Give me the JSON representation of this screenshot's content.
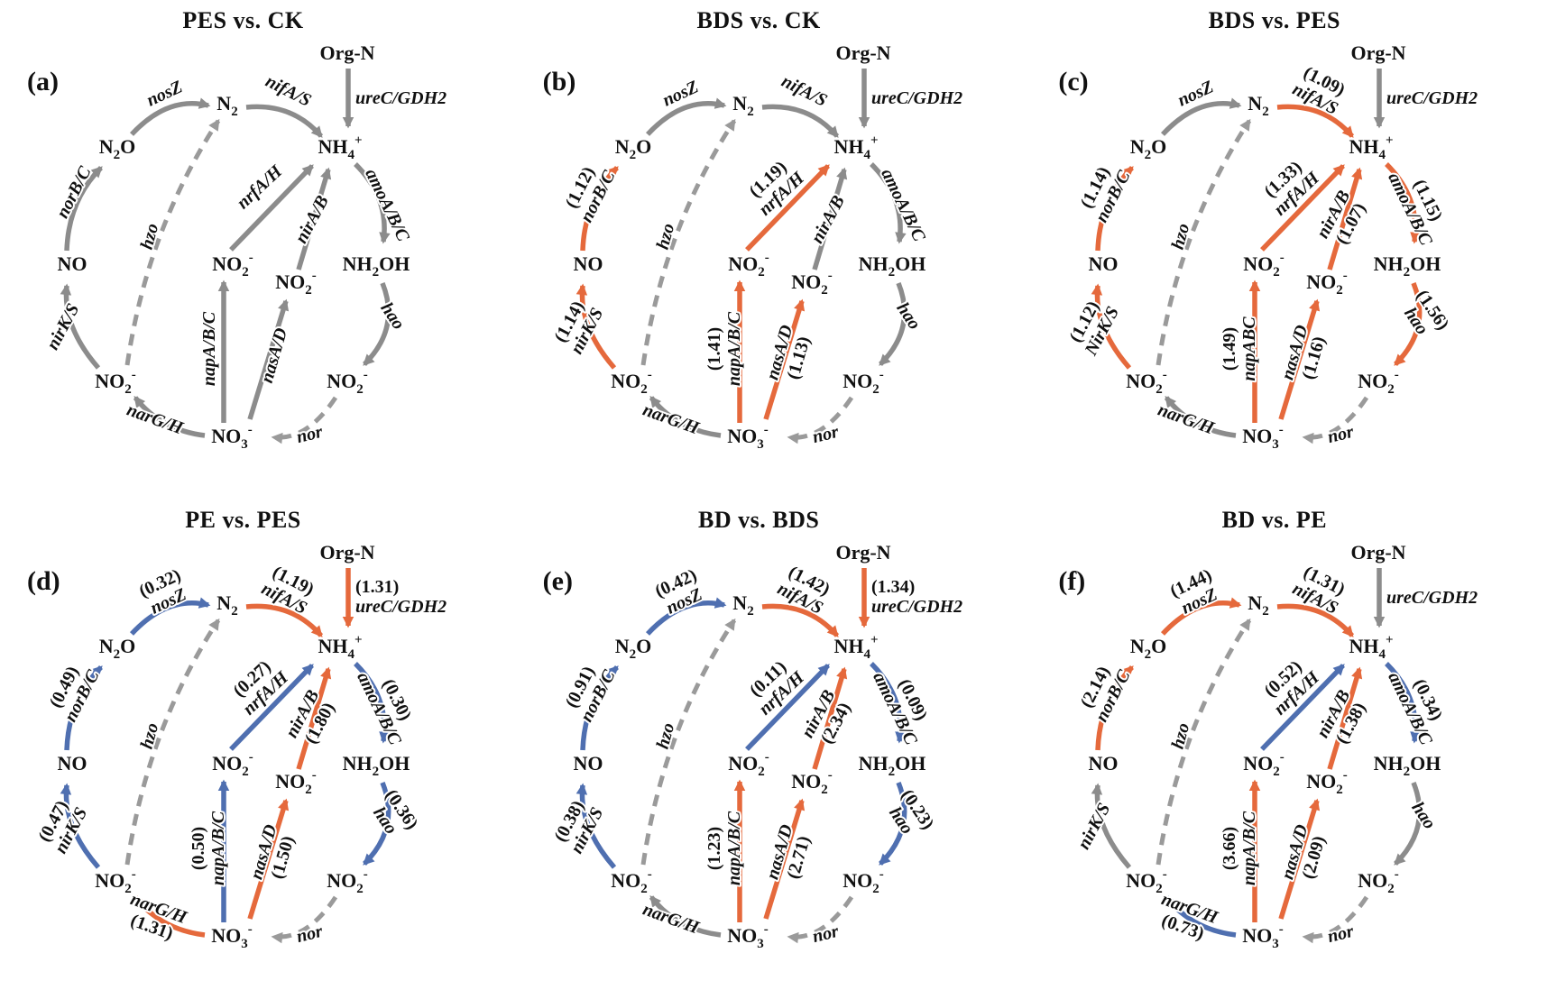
{
  "figure": {
    "description": "Nitrogen cycle gene-expression comparison diagrams",
    "colors": {
      "unchanged": "#8C8C8C",
      "increased": "#E5693C",
      "decreased": "#4F6FB0",
      "dashed": "#9A9A9A",
      "dashed_label": "#B8B8B8",
      "text": "#111111"
    },
    "node_labels": {
      "orgN": "Org-N",
      "n2": "N~2~",
      "nh4": "NH~4~^+^",
      "n2o": "N~2~O",
      "no": "NO",
      "nh2oh": "NH~2~OH",
      "no2C": "NO~2~^-^",
      "no2R": "NO~2~^-^",
      "no2L": "NO~2~^-^",
      "no2BR": "NO~2~^-^",
      "no3": "NO~3~^-^"
    },
    "panels": [
      {
        "letter": "(a)",
        "title": "PES vs. CK",
        "arrows": {
          "nosZ": {
            "label": "nosZ",
            "value": null,
            "state": "unchanged"
          },
          "nifAS": {
            "label": "nifA/S",
            "value": null,
            "state": "unchanged"
          },
          "ureC": {
            "label": "ureC/GDH2",
            "value": null,
            "state": "unchanged"
          },
          "norBC": {
            "label": "norB/C",
            "value": null,
            "state": "unchanged"
          },
          "nrfAH": {
            "label": "nrfA/H",
            "value": null,
            "state": "unchanged"
          },
          "nirAB": {
            "label": "nirA/B",
            "value": null,
            "state": "unchanged"
          },
          "amoABC": {
            "label": "amoA/B/C",
            "value": null,
            "state": "unchanged"
          },
          "hao": {
            "label": "hao",
            "value": null,
            "state": "unchanged"
          },
          "nirKS": {
            "label": "nirK/S",
            "value": null,
            "state": "unchanged"
          },
          "napABC": {
            "label": "napA/B/C",
            "value": null,
            "state": "unchanged"
          },
          "nasAD": {
            "label": "nasA/D",
            "value": null,
            "state": "unchanged"
          },
          "narGH": {
            "label": "narG/H",
            "value": null,
            "state": "unchanged"
          },
          "hzo": {
            "label": "hzo",
            "value": null,
            "state": "anammox"
          },
          "nor": {
            "label": "nor",
            "value": null,
            "state": "anammox"
          }
        }
      },
      {
        "letter": "(b)",
        "title": "BDS vs. CK",
        "arrows": {
          "nosZ": {
            "label": "nosZ",
            "value": null,
            "state": "unchanged"
          },
          "nifAS": {
            "label": "nifA/S",
            "value": null,
            "state": "unchanged"
          },
          "ureC": {
            "label": "ureC/GDH2",
            "value": null,
            "state": "unchanged"
          },
          "norBC": {
            "label": "norB/C",
            "value": "1.12",
            "state": "increased"
          },
          "nrfAH": {
            "label": "nrfA/H",
            "value": "1.19",
            "state": "increased"
          },
          "nirAB": {
            "label": "nirA/B",
            "value": null,
            "state": "unchanged"
          },
          "amoABC": {
            "label": "amoA/B/C",
            "value": null,
            "state": "unchanged"
          },
          "hao": {
            "label": "hao",
            "value": null,
            "state": "unchanged"
          },
          "nirKS": {
            "label": "nirK/S",
            "value": "1.14",
            "state": "increased"
          },
          "napABC": {
            "label": "napA/B/C",
            "value": "1.41",
            "state": "increased"
          },
          "nasAD": {
            "label": "nasA/D",
            "value": "1.13",
            "state": "increased"
          },
          "narGH": {
            "label": "narG/H",
            "value": null,
            "state": "unchanged"
          },
          "hzo": {
            "label": "hzo",
            "value": null,
            "state": "anammox"
          },
          "nor": {
            "label": "nor",
            "value": null,
            "state": "anammox"
          }
        }
      },
      {
        "letter": "(c)",
        "title": "BDS vs. PES",
        "arrows": {
          "nosZ": {
            "label": "nosZ",
            "value": null,
            "state": "unchanged"
          },
          "nifAS": {
            "label": "nifA/S",
            "value": "1.09",
            "state": "increased"
          },
          "ureC": {
            "label": "ureC/GDH2",
            "value": null,
            "state": "unchanged"
          },
          "norBC": {
            "label": "norB/C",
            "value": "1.14",
            "state": "increased"
          },
          "nrfAH": {
            "label": "nrfA/H",
            "value": "1.33",
            "state": "increased"
          },
          "nirAB": {
            "label": "nirA/B",
            "value": "1.07",
            "state": "increased"
          },
          "amoABC": {
            "label": "amoA/B/C",
            "value": "1.15",
            "state": "increased"
          },
          "hao": {
            "label": "hao",
            "value": "1.56",
            "state": "increased"
          },
          "nirKS": {
            "label": "NirK/S",
            "value": "1.12",
            "state": "increased"
          },
          "napABC": {
            "label": "napABC",
            "value": "1.49",
            "state": "increased"
          },
          "nasAD": {
            "label": "nasA/D",
            "value": "1.16",
            "state": "increased"
          },
          "narGH": {
            "label": "narG/H",
            "value": null,
            "state": "unchanged"
          },
          "hzo": {
            "label": "hzo",
            "value": null,
            "state": "anammox"
          },
          "nor": {
            "label": "nor",
            "value": null,
            "state": "anammox"
          }
        }
      },
      {
        "letter": "(d)",
        "title": "PE vs. PES",
        "arrows": {
          "nosZ": {
            "label": "nosZ",
            "value": "0.32",
            "state": "decreased"
          },
          "nifAS": {
            "label": "nifA/S",
            "value": "1.19",
            "state": "increased"
          },
          "ureC": {
            "label": "ureC/GDH2",
            "value": "1.31",
            "state": "increased"
          },
          "norBC": {
            "label": "norB/C",
            "value": "0.49",
            "state": "decreased"
          },
          "nrfAH": {
            "label": "nrfA/H",
            "value": "0.27",
            "state": "decreased"
          },
          "nirAB": {
            "label": "nirA/B",
            "value": "1.80",
            "state": "increased"
          },
          "amoABC": {
            "label": "amoA/B/C",
            "value": "0.30",
            "state": "decreased"
          },
          "hao": {
            "label": "hao",
            "value": "0.36",
            "state": "decreased"
          },
          "nirKS": {
            "label": "nirK/S",
            "value": "0.47",
            "state": "decreased"
          },
          "napABC": {
            "label": "napA/B/C",
            "value": "0.50",
            "state": "decreased"
          },
          "nasAD": {
            "label": "nasA/D",
            "value": "1.50",
            "state": "increased"
          },
          "narGH": {
            "label": "narG/H",
            "value": "1.31",
            "state": "increased"
          },
          "hzo": {
            "label": "hzo",
            "value": null,
            "state": "anammox"
          },
          "nor": {
            "label": "nor",
            "value": null,
            "state": "anammox"
          }
        }
      },
      {
        "letter": "(e)",
        "title": "BD vs. BDS",
        "arrows": {
          "nosZ": {
            "label": "nosZ",
            "value": "0.42",
            "state": "decreased"
          },
          "nifAS": {
            "label": "nifA/S",
            "value": "1.42",
            "state": "increased"
          },
          "ureC": {
            "label": "ureC/GDH2",
            "value": "1.34",
            "state": "increased"
          },
          "norBC": {
            "label": "norB/C",
            "value": "0.91",
            "state": "decreased"
          },
          "nrfAH": {
            "label": "nrfA/H",
            "value": "0.11",
            "state": "decreased"
          },
          "nirAB": {
            "label": "nirA/B",
            "value": "2.34",
            "state": "increased"
          },
          "amoABC": {
            "label": "amoA/B/C",
            "value": "0.09",
            "state": "decreased"
          },
          "hao": {
            "label": "hao",
            "value": "0.23",
            "state": "decreased"
          },
          "nirKS": {
            "label": "nirK/S",
            "value": "0.38",
            "state": "decreased"
          },
          "napABC": {
            "label": "napA/B/C",
            "value": "1.23",
            "state": "increased"
          },
          "nasAD": {
            "label": "nasA/D",
            "value": "2.71",
            "state": "increased"
          },
          "narGH": {
            "label": "narG/H",
            "value": null,
            "state": "unchanged"
          },
          "hzo": {
            "label": "hzo",
            "value": null,
            "state": "anammox"
          },
          "nor": {
            "label": "nor",
            "value": null,
            "state": "anammox"
          }
        }
      },
      {
        "letter": "(f)",
        "title": "BD vs. PE",
        "arrows": {
          "nosZ": {
            "label": "nosZ",
            "value": "1.44",
            "state": "increased"
          },
          "nifAS": {
            "label": "nifA/S",
            "value": "1.31",
            "state": "increased"
          },
          "ureC": {
            "label": "ureC/GDH2",
            "value": null,
            "state": "unchanged"
          },
          "norBC": {
            "label": "norB/C",
            "value": "2.14",
            "state": "increased"
          },
          "nrfAH": {
            "label": "nrfA/H",
            "value": "0.52",
            "state": "decreased"
          },
          "nirAB": {
            "label": "nirA/B",
            "value": "1.38",
            "state": "increased"
          },
          "amoABC": {
            "label": "amoA/B/C",
            "value": "0.34",
            "state": "decreased"
          },
          "hao": {
            "label": "hao",
            "value": null,
            "state": "unchanged"
          },
          "nirKS": {
            "label": "nirK/S",
            "value": null,
            "state": "unchanged"
          },
          "napABC": {
            "label": "napA/B/C",
            "value": "3.66",
            "state": "increased"
          },
          "nasAD": {
            "label": "nasA/D",
            "value": "2.09",
            "state": "increased"
          },
          "narGH": {
            "label": "narG/H",
            "value": "0.73",
            "state": "decreased"
          },
          "hzo": {
            "label": "hzo",
            "value": null,
            "state": "anammox"
          },
          "nor": {
            "label": "nor",
            "value": null,
            "state": "anammox"
          }
        }
      }
    ]
  }
}
